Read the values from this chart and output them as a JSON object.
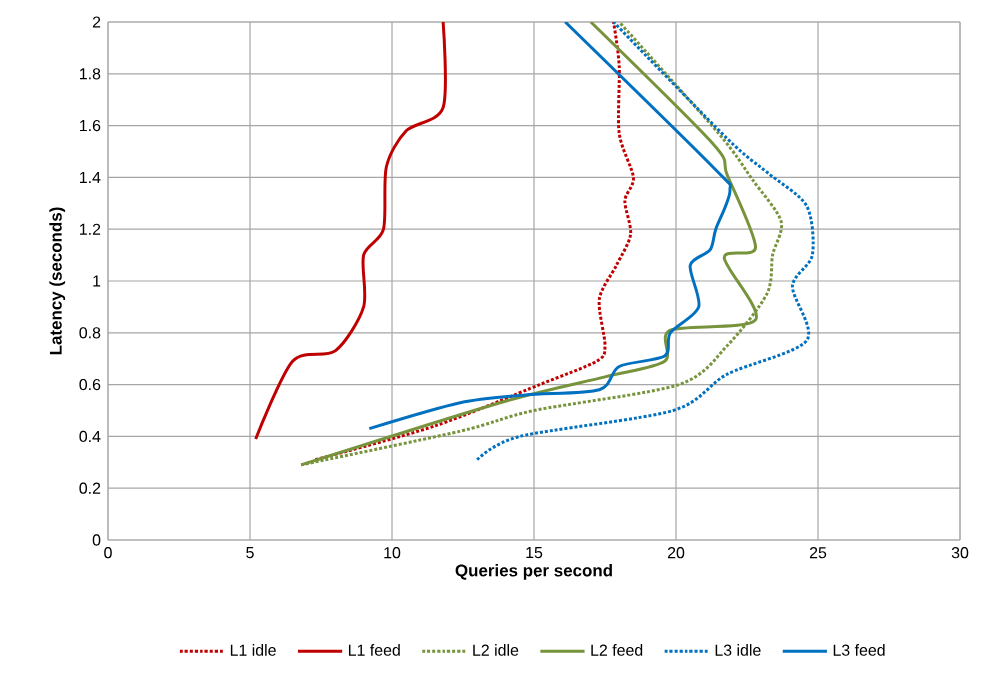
{
  "chart_data": {
    "type": "line",
    "xlabel": "Queries per second",
    "ylabel": "Latency (seconds)",
    "xlim": [
      0,
      30
    ],
    "ylim": [
      0,
      2
    ],
    "xticks": [
      0,
      5,
      10,
      15,
      20,
      25,
      30
    ],
    "yticks": [
      0,
      0.2,
      0.4,
      0.6,
      0.8,
      1,
      1.2,
      1.4,
      1.6,
      1.8,
      2
    ],
    "grid": true,
    "legend": "bottom",
    "marker": "none",
    "series": [
      {
        "name": "L1 idle",
        "color": "#c00000",
        "line_style": "dotted",
        "x": [
          7.3,
          11.5,
          15.2,
          17.2,
          17.5,
          17.3,
          17.9,
          18.4,
          18.2,
          18.5,
          18.0,
          18.0,
          17.8
        ],
        "values": [
          0.31,
          0.44,
          0.6,
          0.69,
          0.75,
          0.93,
          1.06,
          1.18,
          1.31,
          1.4,
          1.57,
          1.83,
          2.0
        ]
      },
      {
        "name": "L1 feed",
        "color": "#c00000",
        "line_style": "solid",
        "x": [
          5.2,
          6.5,
          8.0,
          9.0,
          9.0,
          9.7,
          9.8,
          10.5,
          11.8,
          11.8
        ],
        "values": [
          0.39,
          0.69,
          0.73,
          0.9,
          1.1,
          1.2,
          1.44,
          1.58,
          1.67,
          2.0
        ]
      },
      {
        "name": "L2 idle",
        "color": "#77933c",
        "line_style": "dotted",
        "x": [
          6.8,
          12.4,
          15.0,
          20.1,
          21.8,
          23.2,
          23.4,
          23.7,
          22.7,
          21.5,
          18.0
        ],
        "values": [
          0.29,
          0.42,
          0.5,
          0.6,
          0.75,
          0.95,
          1.1,
          1.23,
          1.39,
          1.57,
          2.0
        ]
      },
      {
        "name": "L2 feed",
        "color": "#77933c",
        "line_style": "solid",
        "x": [
          6.8,
          13.8,
          17.5,
          19.6,
          19.8,
          22.8,
          21.7,
          22.8,
          21.8,
          21.3,
          17.0
        ],
        "values": [
          0.29,
          0.53,
          0.63,
          0.69,
          0.81,
          0.85,
          1.09,
          1.13,
          1.41,
          1.53,
          2.0
        ]
      },
      {
        "name": "L3 idle",
        "color": "#0070c0",
        "line_style": "dotted",
        "x": [
          13.0,
          14.5,
          19.9,
          21.8,
          24.6,
          24.1,
          24.8,
          24.6,
          23.2,
          21.8,
          17.8
        ],
        "values": [
          0.31,
          0.4,
          0.5,
          0.64,
          0.77,
          0.98,
          1.1,
          1.29,
          1.42,
          1.55,
          2.0
        ]
      },
      {
        "name": "L3 feed",
        "color": "#0070c0",
        "line_style": "solid",
        "x": [
          9.2,
          12.4,
          14.7,
          17.3,
          18.0,
          19.6,
          19.8,
          20.8,
          20.5,
          21.2,
          21.4,
          21.9,
          21.3,
          16.1
        ],
        "values": [
          0.43,
          0.53,
          0.56,
          0.58,
          0.67,
          0.71,
          0.8,
          0.9,
          1.06,
          1.12,
          1.2,
          1.35,
          1.44,
          2.0
        ]
      }
    ]
  }
}
